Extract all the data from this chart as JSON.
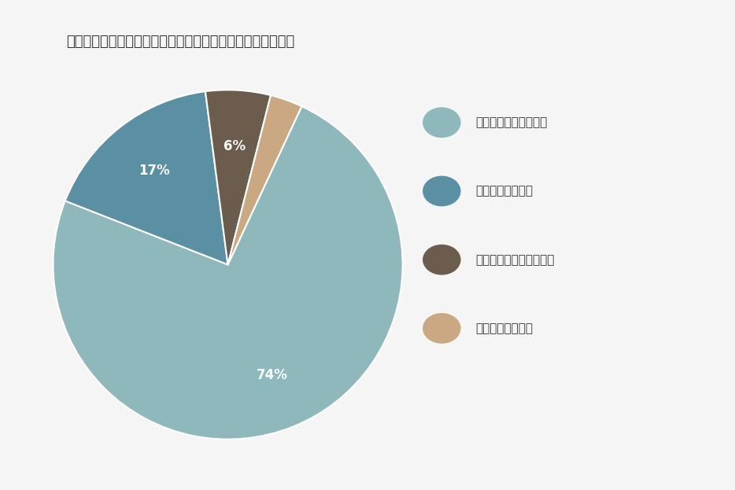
{
  "title": "ふるさと納税で電気代に充当したいと思う理由は何ですか？",
  "slices": [
    74,
    17,
    6,
    3
  ],
  "labels": [
    "電気料金の節約になる",
    "税金の控除になる",
    "新しい制度に興味がある",
    "地域貢献に繋がる"
  ],
  "colors": [
    "#8eb8bc",
    "#5b8fa3",
    "#6b5c4e",
    "#c9a882"
  ],
  "pct_labels": [
    "74%",
    "17%",
    "6%",
    ""
  ],
  "background_color": "#f5f5f5",
  "title_fontsize": 13,
  "legend_fontsize": 11,
  "pct_fontsize": 12,
  "text_color": "#333333",
  "startangle": 65
}
